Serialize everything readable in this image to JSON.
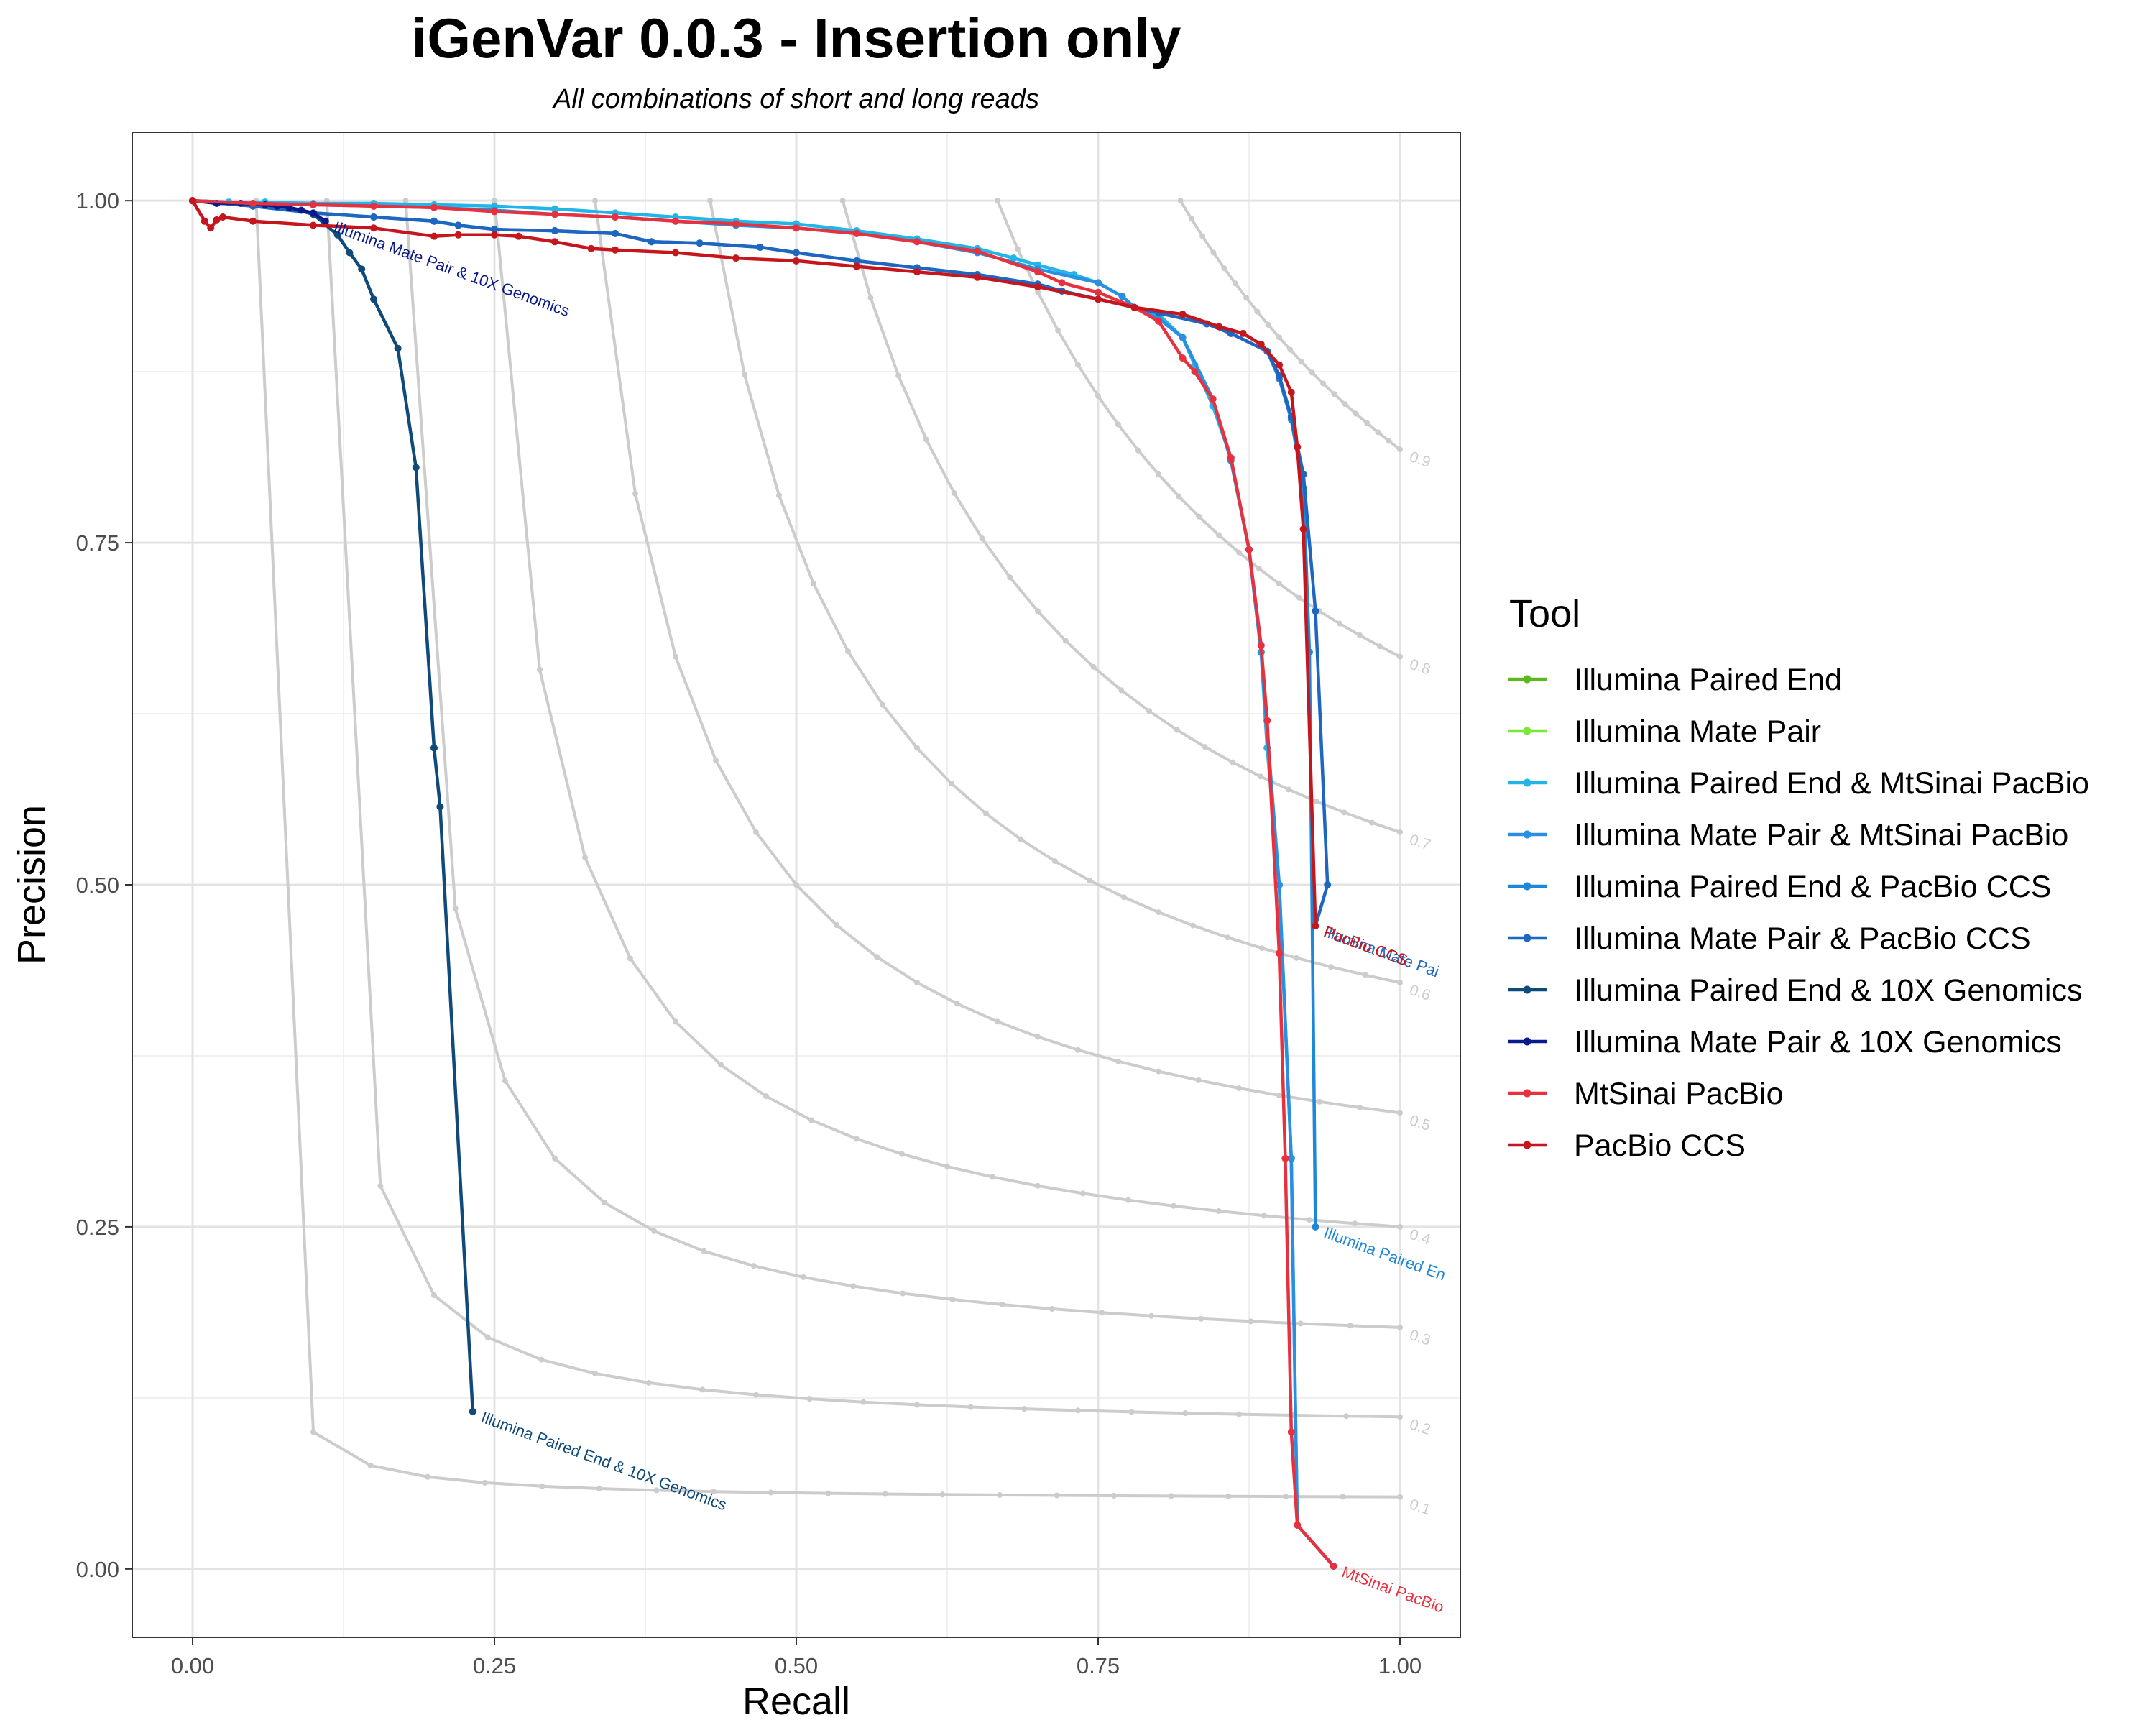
{
  "chart_data": {
    "type": "line",
    "title": "iGenVar 0.0.3 - Insertion only",
    "subtitle": "All combinations of short and long reads",
    "xlabel": "Recall",
    "ylabel": "Precision",
    "xlim": [
      -0.05,
      1.05
    ],
    "ylim": [
      -0.05,
      1.05
    ],
    "x_ticks": [
      "0.00",
      "0.25",
      "0.50",
      "0.75",
      "1.00"
    ],
    "y_ticks": [
      "0.00",
      "0.25",
      "0.50",
      "0.75",
      "1.00"
    ],
    "grid": true,
    "legend": {
      "title": "Tool",
      "position": "right"
    },
    "f_score_curves": [
      {
        "label": "0.1",
        "f": 0.1
      },
      {
        "label": "0.2",
        "f": 0.2
      },
      {
        "label": "0.3",
        "f": 0.3
      },
      {
        "label": "0.4",
        "f": 0.4
      },
      {
        "label": "0.5",
        "f": 0.5
      },
      {
        "label": "0.6",
        "f": 0.6
      },
      {
        "label": "0.7",
        "f": 0.7
      },
      {
        "label": "0.8",
        "f": 0.8
      },
      {
        "label": "0.9",
        "f": 0.9
      }
    ],
    "series": [
      {
        "name": "Illumina Paired End",
        "color": "#5cb81c",
        "points": [],
        "end_label": ""
      },
      {
        "name": "Illumina Mate Pair",
        "color": "#7ce639",
        "points": [],
        "end_label": ""
      },
      {
        "name": "Illumina Paired End & MtSinai PacBio",
        "color": "#22b5e8",
        "end_label": "",
        "points": [
          [
            0.0,
            1.0
          ],
          [
            0.03,
            0.999
          ],
          [
            0.06,
            0.999
          ],
          [
            0.1,
            0.998
          ],
          [
            0.15,
            0.998
          ],
          [
            0.2,
            0.997
          ],
          [
            0.25,
            0.996
          ],
          [
            0.3,
            0.994
          ],
          [
            0.35,
            0.991
          ],
          [
            0.4,
            0.988
          ],
          [
            0.45,
            0.985
          ],
          [
            0.5,
            0.983
          ],
          [
            0.55,
            0.978
          ],
          [
            0.6,
            0.972
          ],
          [
            0.65,
            0.965
          ],
          [
            0.68,
            0.958
          ],
          [
            0.7,
            0.953
          ],
          [
            0.73,
            0.946
          ],
          [
            0.75,
            0.94
          ],
          [
            0.77,
            0.93
          ],
          [
            0.78,
            0.922
          ],
          [
            0.8,
            0.917
          ],
          [
            0.82,
            0.9
          ],
          [
            0.83,
            0.88
          ],
          [
            0.845,
            0.85
          ],
          [
            0.86,
            0.812
          ],
          [
            0.875,
            0.745
          ],
          [
            0.885,
            0.67
          ],
          [
            0.89,
            0.6
          ],
          [
            0.9,
            0.5
          ],
          [
            0.91,
            0.3
          ],
          [
            0.915,
            0.032
          ],
          [
            0.945,
            0.002
          ]
        ]
      },
      {
        "name": "Illumina Mate Pair & MtSinai PacBio",
        "color": "#2a8fe0",
        "end_label": "",
        "points": [
          [
            0.0,
            1.0
          ],
          [
            0.05,
            0.998
          ],
          [
            0.1,
            0.997
          ],
          [
            0.15,
            0.996
          ],
          [
            0.2,
            0.995
          ],
          [
            0.25,
            0.993
          ],
          [
            0.3,
            0.99
          ],
          [
            0.35,
            0.988
          ],
          [
            0.4,
            0.985
          ],
          [
            0.45,
            0.982
          ],
          [
            0.5,
            0.98
          ],
          [
            0.55,
            0.976
          ],
          [
            0.6,
            0.97
          ],
          [
            0.65,
            0.962
          ],
          [
            0.7,
            0.95
          ],
          [
            0.75,
            0.94
          ],
          [
            0.77,
            0.93
          ],
          [
            0.78,
            0.922
          ],
          [
            0.8,
            0.914
          ],
          [
            0.82,
            0.9
          ],
          [
            0.845,
            0.855
          ],
          [
            0.86,
            0.81
          ],
          [
            0.875,
            0.745
          ],
          [
            0.885,
            0.67
          ],
          [
            0.9,
            0.5
          ],
          [
            0.91,
            0.3
          ],
          [
            0.915,
            0.032
          ],
          [
            0.945,
            0.002
          ]
        ]
      },
      {
        "name": "Illumina Paired End & PacBio CCS",
        "color": "#1f87d8",
        "end_label": "Illumina Paired En",
        "points": [
          [
            0.0,
            1.0
          ],
          [
            0.05,
            0.996
          ],
          [
            0.1,
            0.991
          ],
          [
            0.15,
            0.988
          ],
          [
            0.2,
            0.985
          ],
          [
            0.22,
            0.982
          ],
          [
            0.25,
            0.979
          ],
          [
            0.3,
            0.978
          ],
          [
            0.35,
            0.976
          ],
          [
            0.38,
            0.97
          ],
          [
            0.42,
            0.969
          ],
          [
            0.47,
            0.966
          ],
          [
            0.5,
            0.962
          ],
          [
            0.55,
            0.956
          ],
          [
            0.6,
            0.951
          ],
          [
            0.65,
            0.946
          ],
          [
            0.7,
            0.939
          ],
          [
            0.72,
            0.934
          ],
          [
            0.75,
            0.928
          ],
          [
            0.8,
            0.918
          ],
          [
            0.84,
            0.91
          ],
          [
            0.86,
            0.903
          ],
          [
            0.89,
            0.89
          ],
          [
            0.9,
            0.87
          ],
          [
            0.91,
            0.84
          ],
          [
            0.92,
            0.79
          ],
          [
            0.925,
            0.67
          ],
          [
            0.93,
            0.25
          ]
        ]
      },
      {
        "name": "Illumina Mate Pair & PacBio CCS",
        "color": "#1e66c0",
        "end_label": "Illumina Mate Pai",
        "points": [
          [
            0.0,
            1.0
          ],
          [
            0.05,
            0.996
          ],
          [
            0.1,
            0.991
          ],
          [
            0.15,
            0.988
          ],
          [
            0.2,
            0.985
          ],
          [
            0.22,
            0.982
          ],
          [
            0.25,
            0.979
          ],
          [
            0.3,
            0.978
          ],
          [
            0.35,
            0.976
          ],
          [
            0.38,
            0.97
          ],
          [
            0.42,
            0.969
          ],
          [
            0.47,
            0.966
          ],
          [
            0.5,
            0.962
          ],
          [
            0.55,
            0.956
          ],
          [
            0.6,
            0.951
          ],
          [
            0.65,
            0.946
          ],
          [
            0.7,
            0.939
          ],
          [
            0.72,
            0.934
          ],
          [
            0.75,
            0.928
          ],
          [
            0.8,
            0.918
          ],
          [
            0.84,
            0.91
          ],
          [
            0.86,
            0.903
          ],
          [
            0.89,
            0.89
          ],
          [
            0.9,
            0.872
          ],
          [
            0.91,
            0.842
          ],
          [
            0.92,
            0.8
          ],
          [
            0.93,
            0.7
          ],
          [
            0.94,
            0.5
          ],
          [
            0.93,
            0.47
          ]
        ]
      },
      {
        "name": "Illumina Paired End & 10X Genomics",
        "color": "#0f4a7a",
        "end_label": "Illumina Paired End & 10X Genomics",
        "points": [
          [
            0.0,
            1.0
          ],
          [
            0.05,
            0.998
          ],
          [
            0.08,
            0.995
          ],
          [
            0.1,
            0.99
          ],
          [
            0.12,
            0.975
          ],
          [
            0.13,
            0.962
          ],
          [
            0.14,
            0.95
          ],
          [
            0.15,
            0.928
          ],
          [
            0.17,
            0.892
          ],
          [
            0.185,
            0.805
          ],
          [
            0.2,
            0.6
          ],
          [
            0.205,
            0.557
          ],
          [
            0.232,
            0.115
          ]
        ]
      },
      {
        "name": "Illumina Mate Pair & 10X Genomics",
        "color": "#0a1a8a",
        "end_label": "Illumina Mate Pair & 10X Genomics",
        "points": [
          [
            0.0,
            1.0
          ],
          [
            0.02,
            0.998
          ],
          [
            0.04,
            0.998
          ],
          [
            0.06,
            0.997
          ],
          [
            0.07,
            0.996
          ],
          [
            0.08,
            0.995
          ],
          [
            0.09,
            0.993
          ],
          [
            0.1,
            0.991
          ],
          [
            0.11,
            0.985
          ]
        ]
      },
      {
        "name": "MtSinai PacBio",
        "color": "#e8313f",
        "end_label": "MtSinai PacBio",
        "points": [
          [
            0.0,
            1.0
          ],
          [
            0.05,
            0.998
          ],
          [
            0.1,
            0.997
          ],
          [
            0.15,
            0.996
          ],
          [
            0.2,
            0.995
          ],
          [
            0.25,
            0.992
          ],
          [
            0.3,
            0.99
          ],
          [
            0.35,
            0.988
          ],
          [
            0.4,
            0.985
          ],
          [
            0.45,
            0.983
          ],
          [
            0.5,
            0.98
          ],
          [
            0.55,
            0.976
          ],
          [
            0.6,
            0.97
          ],
          [
            0.65,
            0.963
          ],
          [
            0.7,
            0.948
          ],
          [
            0.72,
            0.94
          ],
          [
            0.75,
            0.933
          ],
          [
            0.78,
            0.922
          ],
          [
            0.8,
            0.912
          ],
          [
            0.82,
            0.885
          ],
          [
            0.83,
            0.875
          ],
          [
            0.845,
            0.855
          ],
          [
            0.86,
            0.812
          ],
          [
            0.875,
            0.745
          ],
          [
            0.885,
            0.675
          ],
          [
            0.89,
            0.62
          ],
          [
            0.9,
            0.45
          ],
          [
            0.905,
            0.3
          ],
          [
            0.91,
            0.1
          ],
          [
            0.915,
            0.032
          ],
          [
            0.945,
            0.002
          ]
        ]
      },
      {
        "name": "PacBio CCS",
        "color": "#c4161c",
        "end_label": "PacBio CCS",
        "points": [
          [
            0.0,
            1.0
          ],
          [
            0.01,
            0.985
          ],
          [
            0.015,
            0.98
          ],
          [
            0.02,
            0.986
          ],
          [
            0.025,
            0.988
          ],
          [
            0.05,
            0.985
          ],
          [
            0.1,
            0.982
          ],
          [
            0.15,
            0.98
          ],
          [
            0.2,
            0.974
          ],
          [
            0.22,
            0.975
          ],
          [
            0.25,
            0.975
          ],
          [
            0.27,
            0.974
          ],
          [
            0.3,
            0.97
          ],
          [
            0.33,
            0.965
          ],
          [
            0.35,
            0.964
          ],
          [
            0.4,
            0.962
          ],
          [
            0.45,
            0.958
          ],
          [
            0.5,
            0.956
          ],
          [
            0.55,
            0.952
          ],
          [
            0.6,
            0.948
          ],
          [
            0.65,
            0.944
          ],
          [
            0.7,
            0.937
          ],
          [
            0.75,
            0.928
          ],
          [
            0.78,
            0.922
          ],
          [
            0.82,
            0.917
          ],
          [
            0.85,
            0.908
          ],
          [
            0.87,
            0.903
          ],
          [
            0.885,
            0.895
          ],
          [
            0.9,
            0.88
          ],
          [
            0.91,
            0.86
          ],
          [
            0.915,
            0.82
          ],
          [
            0.92,
            0.76
          ],
          [
            0.93,
            0.47
          ]
        ]
      }
    ]
  }
}
